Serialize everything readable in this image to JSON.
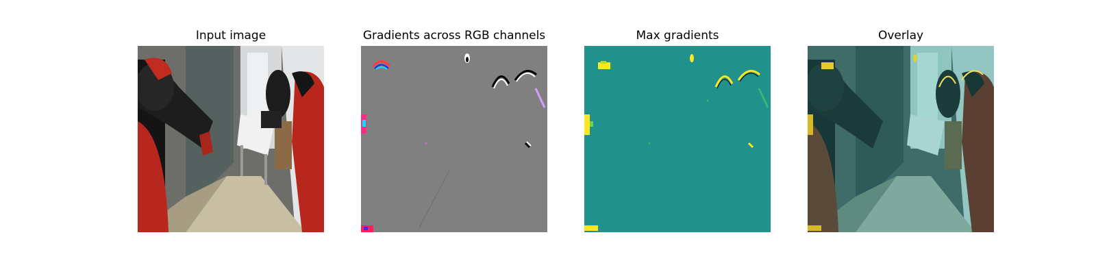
{
  "figure": {
    "panels": [
      {
        "title": "Input image"
      },
      {
        "title": "Gradients across RGB channels"
      },
      {
        "title": "Max gradients"
      },
      {
        "title": "Overlay"
      }
    ],
    "colors": {
      "background": "#ffffff",
      "gradient_gray": "#808080",
      "viridis_mid": "#21918c",
      "viridis_high": "#fde725",
      "robot_red": "#b8271e"
    }
  }
}
